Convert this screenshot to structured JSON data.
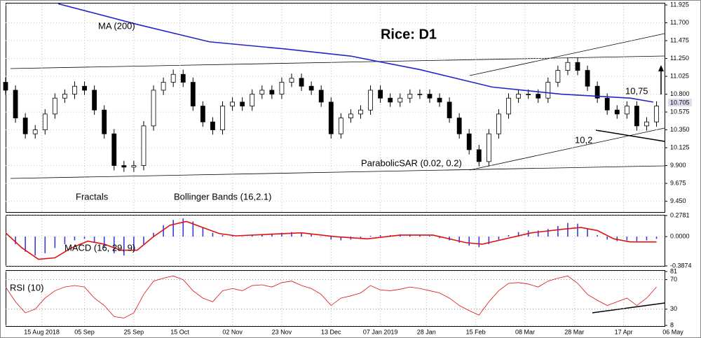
{
  "chart_data": [
    {
      "type": "candlestick",
      "title": "Rice: D1",
      "price_tag": "10.705",
      "annotations": [
        "MA (200)",
        "Fractals",
        "Bollinger Bands (16,2.1)",
        "ParabolicSAR (0.02, 0.2)",
        "10,75",
        "10,2"
      ],
      "xlim": [
        0,
        203
      ],
      "xticks": [
        {
          "value": 11,
          "label": "15 Aug 2018"
        },
        {
          "value": 24,
          "label": "05 Sep"
        },
        {
          "value": 39,
          "label": "25 Sep"
        },
        {
          "value": 53,
          "label": "15 Oct"
        },
        {
          "value": 69,
          "label": "02 Nov"
        },
        {
          "value": 84,
          "label": "23 Nov"
        },
        {
          "value": 99,
          "label": "13 Dec"
        },
        {
          "value": 114,
          "label": "07 Jan 2019"
        },
        {
          "value": 128,
          "label": "28 Jan"
        },
        {
          "value": 143,
          "label": "15 Feb"
        },
        {
          "value": 158,
          "label": "08 Mar"
        },
        {
          "value": 173,
          "label": "28 Mar"
        },
        {
          "value": 188,
          "label": "17 Apr"
        },
        {
          "value": 203,
          "label": "06 May"
        }
      ],
      "ylim": [
        9.314,
        11.943
      ],
      "yticks": [
        11.925,
        {
          "value": 11.7,
          "label": "11.700"
        },
        11.475,
        {
          "value": 11.25,
          "label": "11.250"
        },
        11.025,
        {
          "value": 10.8,
          "label": "10.800"
        },
        10.575,
        {
          "value": 10.35,
          "label": "10.350"
        },
        10.125,
        {
          "value": 9.9,
          "label": "9.900"
        },
        9.675,
        {
          "value": 9.45,
          "label": "9.450"
        }
      ],
      "x": [
        0,
        3,
        6,
        9,
        12,
        15,
        18,
        21,
        24,
        27,
        30,
        33,
        36,
        39,
        42,
        45,
        48,
        51,
        54,
        57,
        60,
        63,
        66,
        69,
        72,
        75,
        78,
        81,
        84,
        87,
        90,
        93,
        96,
        99,
        102,
        105,
        108,
        111,
        114,
        117,
        120,
        123,
        126,
        129,
        132,
        135,
        138,
        141,
        144,
        147,
        150,
        153,
        156,
        159,
        162,
        165,
        168,
        171,
        174,
        177,
        180,
        183,
        186,
        189,
        192,
        195,
        198
      ],
      "open": [
        10.95,
        10.85,
        10.5,
        10.3,
        10.35,
        10.55,
        10.75,
        10.8,
        10.9,
        10.85,
        10.6,
        10.3,
        9.9,
        9.88,
        9.9,
        10.4,
        10.85,
        10.95,
        11.05,
        10.95,
        10.65,
        10.45,
        10.35,
        10.65,
        10.7,
        10.65,
        10.8,
        10.85,
        10.8,
        10.95,
        11.0,
        10.9,
        10.85,
        10.7,
        10.3,
        10.5,
        10.55,
        10.6,
        10.85,
        10.75,
        10.7,
        10.75,
        10.8,
        10.8,
        10.75,
        10.7,
        10.5,
        10.3,
        10.1,
        9.95,
        10.3,
        10.55,
        10.75,
        10.8,
        10.8,
        10.75,
        10.95,
        11.1,
        11.2,
        11.1,
        10.9,
        10.75,
        10.6,
        10.55,
        10.65,
        10.4,
        10.45
      ],
      "high": [
        11.01,
        10.91,
        10.56,
        10.41,
        10.61,
        10.81,
        10.86,
        10.96,
        10.96,
        10.91,
        10.66,
        10.36,
        9.96,
        9.96,
        10.46,
        10.91,
        11.01,
        11.11,
        11.11,
        11.01,
        10.71,
        10.51,
        10.71,
        10.76,
        10.76,
        10.86,
        10.91,
        10.91,
        11.01,
        11.06,
        11.06,
        10.96,
        10.91,
        10.76,
        10.56,
        10.61,
        10.66,
        10.91,
        10.91,
        10.81,
        10.81,
        10.86,
        10.86,
        10.86,
        10.81,
        10.76,
        10.56,
        10.36,
        10.16,
        10.36,
        10.61,
        10.81,
        10.86,
        10.86,
        10.86,
        11.01,
        11.16,
        11.26,
        11.26,
        11.16,
        10.96,
        10.81,
        10.66,
        10.71,
        10.71,
        10.51,
        10.71
      ],
      "low": [
        10.79,
        10.44,
        10.24,
        10.24,
        10.29,
        10.49,
        10.69,
        10.74,
        10.79,
        10.54,
        10.24,
        9.84,
        9.82,
        9.82,
        9.84,
        10.34,
        10.79,
        10.89,
        10.89,
        10.59,
        10.39,
        10.29,
        10.29,
        10.59,
        10.59,
        10.59,
        10.74,
        10.74,
        10.74,
        10.89,
        10.84,
        10.79,
        10.64,
        10.24,
        10.24,
        10.44,
        10.49,
        10.54,
        10.69,
        10.64,
        10.64,
        10.69,
        10.74,
        10.69,
        10.64,
        10.44,
        10.24,
        10.04,
        9.89,
        9.89,
        10.24,
        10.49,
        10.69,
        10.74,
        10.69,
        10.69,
        10.89,
        11.04,
        11.04,
        10.84,
        10.69,
        10.54,
        10.49,
        10.49,
        10.34,
        10.34,
        10.39
      ],
      "close": [
        10.85,
        10.5,
        10.3,
        10.35,
        10.55,
        10.75,
        10.8,
        10.9,
        10.85,
        10.6,
        10.3,
        9.9,
        9.88,
        9.9,
        10.4,
        10.85,
        10.95,
        11.05,
        10.95,
        10.65,
        10.45,
        10.35,
        10.65,
        10.7,
        10.65,
        10.8,
        10.85,
        10.8,
        10.95,
        11.0,
        10.9,
        10.85,
        10.7,
        10.3,
        10.5,
        10.55,
        10.6,
        10.85,
        10.75,
        10.7,
        10.75,
        10.8,
        10.8,
        10.75,
        10.7,
        10.5,
        10.3,
        10.1,
        9.95,
        10.3,
        10.55,
        10.75,
        10.8,
        10.8,
        10.75,
        10.95,
        11.1,
        11.2,
        11.1,
        10.9,
        10.75,
        10.6,
        10.55,
        10.65,
        10.4,
        10.45,
        10.65
      ],
      "ma": {
        "color": "#2424c8",
        "x": [
          16,
          40,
          62,
          85,
          105,
          126,
          148,
          169,
          190,
          197
        ],
        "values": [
          11.94,
          11.68,
          11.46,
          11.37,
          11.28,
          11.11,
          10.89,
          10.8,
          10.75,
          10.7
        ]
      }
    },
    {
      "type": "macd",
      "title": "MACD (16, 29, 9)",
      "xlim": [
        0,
        203
      ],
      "ylim": [
        -0.3874,
        0.2781
      ],
      "yticks": [
        0.2781,
        {
          "value": 0,
          "label": "0.0000"
        },
        -0.3874
      ],
      "x": [
        0,
        3,
        6,
        9,
        12,
        15,
        18,
        21,
        24,
        27,
        30,
        33,
        36,
        39,
        42,
        45,
        48,
        51,
        54,
        57,
        60,
        63,
        66,
        69,
        72,
        75,
        78,
        81,
        84,
        87,
        90,
        93,
        96,
        99,
        102,
        105,
        108,
        111,
        114,
        117,
        120,
        123,
        126,
        129,
        132,
        135,
        138,
        141,
        144,
        147,
        150,
        153,
        156,
        159,
        162,
        165,
        168,
        171,
        174,
        177,
        180,
        183,
        186,
        189,
        192,
        195,
        198
      ],
      "histogram": {
        "color": "#3c3cdc",
        "values": [
          0.0,
          -0.1,
          -0.2,
          -0.25,
          -0.22,
          -0.15,
          -0.1,
          -0.05,
          -0.03,
          -0.08,
          -0.15,
          -0.22,
          -0.25,
          -0.2,
          -0.1,
          0.05,
          0.15,
          0.22,
          0.24,
          0.2,
          0.12,
          0.05,
          0.02,
          0.02,
          0.0,
          0.02,
          0.03,
          0.04,
          0.05,
          0.06,
          0.05,
          0.03,
          0.0,
          -0.04,
          -0.05,
          -0.04,
          -0.02,
          0.01,
          0.02,
          0.02,
          0.03,
          0.03,
          0.02,
          0.01,
          -0.02,
          -0.05,
          -0.08,
          -0.12,
          -0.14,
          -0.1,
          -0.04,
          0.02,
          0.06,
          0.08,
          0.08,
          0.1,
          0.14,
          0.18,
          0.17,
          0.1,
          0.02,
          -0.04,
          -0.06,
          -0.05,
          -0.06,
          -0.05,
          -0.03
        ]
      },
      "signal": {
        "color": "#e01010",
        "x": [
          0,
          5,
          10,
          15,
          20,
          25,
          30,
          35,
          40,
          45,
          50,
          55,
          60,
          65,
          70,
          80,
          90,
          100,
          110,
          120,
          130,
          140,
          145,
          150,
          160,
          170,
          175,
          180,
          185,
          190,
          198
        ],
        "values": [
          0.05,
          -0.15,
          -0.3,
          -0.28,
          -0.15,
          -0.06,
          -0.1,
          -0.18,
          -0.18,
          0.0,
          0.15,
          0.2,
          0.12,
          0.04,
          0.01,
          0.03,
          0.05,
          0.0,
          -0.03,
          0.02,
          0.02,
          -0.08,
          -0.1,
          -0.05,
          0.05,
          0.1,
          0.12,
          0.08,
          -0.03,
          -0.07,
          -0.07
        ]
      }
    },
    {
      "type": "rsi",
      "title": "RSI (10)",
      "xlim": [
        0,
        203
      ],
      "color": "#e01010",
      "ylim": [
        8,
        81
      ],
      "yticks": [
        81,
        70,
        30,
        8
      ],
      "x": [
        0,
        3,
        6,
        9,
        12,
        15,
        18,
        21,
        24,
        27,
        30,
        33,
        36,
        39,
        42,
        45,
        48,
        51,
        54,
        57,
        60,
        63,
        66,
        69,
        72,
        75,
        78,
        81,
        84,
        87,
        90,
        93,
        96,
        99,
        102,
        105,
        108,
        111,
        114,
        117,
        120,
        123,
        126,
        129,
        132,
        135,
        138,
        141,
        144,
        147,
        150,
        153,
        156,
        159,
        162,
        165,
        168,
        171,
        174,
        177,
        180,
        183,
        186,
        189,
        192,
        195,
        198
      ],
      "values": [
        60,
        40,
        25,
        30,
        45,
        55,
        60,
        62,
        60,
        45,
        35,
        20,
        18,
        25,
        50,
        68,
        72,
        75,
        70,
        55,
        45,
        40,
        55,
        58,
        55,
        62,
        63,
        60,
        66,
        68,
        62,
        58,
        50,
        35,
        45,
        48,
        52,
        62,
        56,
        55,
        57,
        60,
        58,
        55,
        52,
        45,
        35,
        28,
        22,
        40,
        55,
        65,
        66,
        64,
        60,
        68,
        72,
        75,
        65,
        50,
        42,
        35,
        40,
        45,
        35,
        45,
        60
      ]
    }
  ]
}
